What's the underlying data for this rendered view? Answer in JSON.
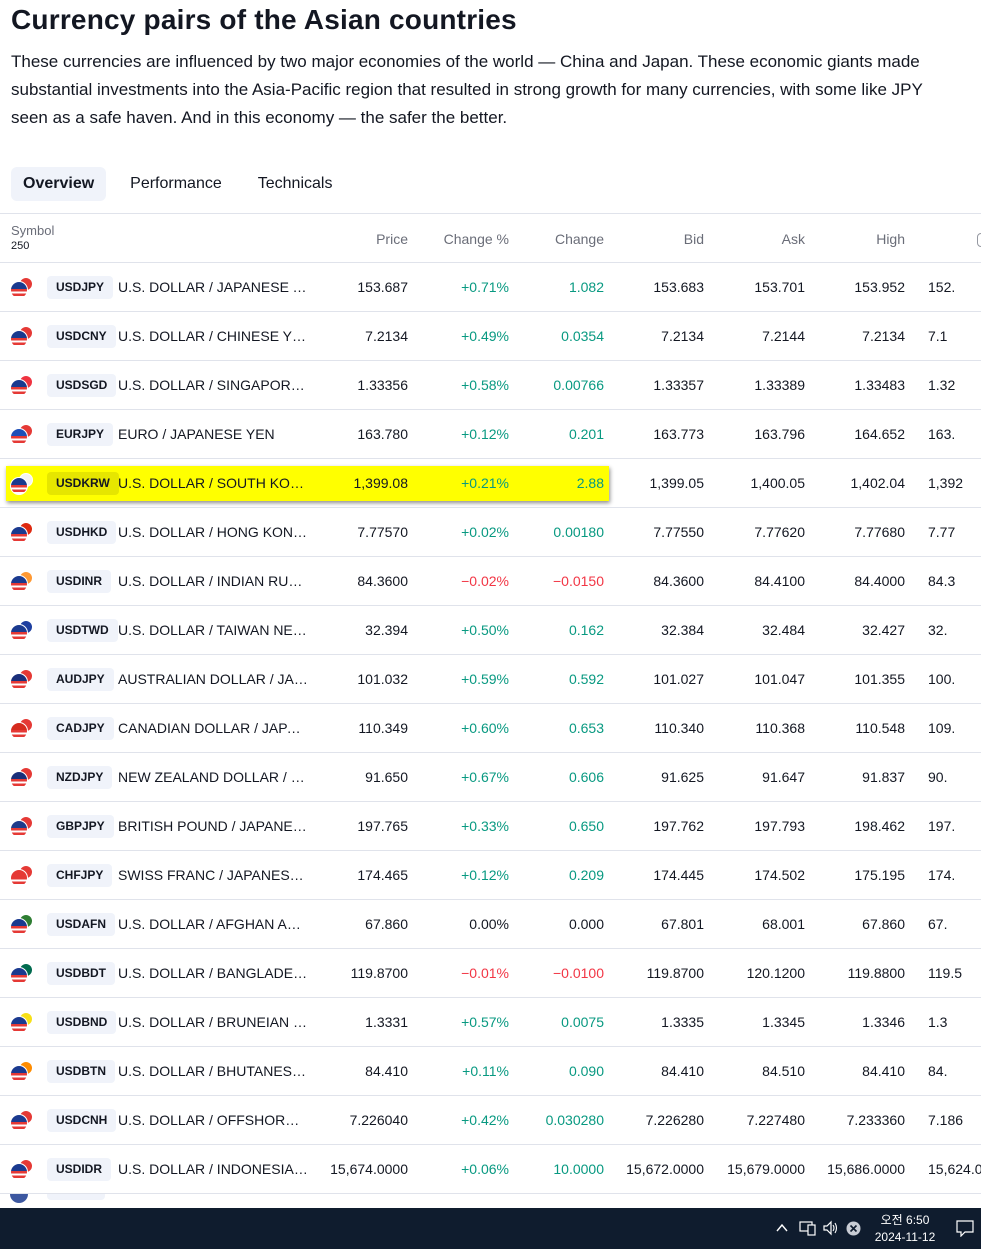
{
  "title": "Currency pairs of the Asian countries",
  "description": "These currencies are influenced by two major economies of the world — China and Japan. These economic giants made substantial investments into the Asia-Pacific region that resulted in strong growth for many currencies, with some like JPY seen as a safe haven. And in this economy — the safer the better.",
  "tabs": [
    "Overview",
    "Performance",
    "Technicals"
  ],
  "columns": {
    "symbol": "Symbol",
    "count": "250",
    "price": "Price",
    "change_pct": "Change %",
    "change": "Change",
    "bid": "Bid",
    "ask": "Ask",
    "high": "High"
  },
  "rows": [
    {
      "ticker": "USDJPY",
      "name": "U.S. DOLLAR / JAPANESE YEN",
      "price": "153.687",
      "chp": "+0.71%",
      "ch": "1.082",
      "bid": "153.683",
      "ask": "153.701",
      "high": "153.952",
      "low": "152.",
      "dir": "pos",
      "flag": [
        "#1a3a8f",
        "#e53935"
      ]
    },
    {
      "ticker": "USDCNY",
      "name": "U.S. DOLLAR / CHINESE YUAN",
      "price": "7.2134",
      "chp": "+0.49%",
      "ch": "0.0354",
      "bid": "7.2134",
      "ask": "7.2144",
      "high": "7.2134",
      "low": "7.1",
      "dir": "pos",
      "flag": [
        "#1a3a8f",
        "#e53935"
      ]
    },
    {
      "ticker": "USDSGD",
      "name": "U.S. DOLLAR / SINGAPORE DOLLAR",
      "price": "1.33356",
      "chp": "+0.58%",
      "ch": "0.00766",
      "bid": "1.33357",
      "ask": "1.33389",
      "high": "1.33483",
      "low": "1.32",
      "dir": "pos",
      "flag": [
        "#1a3a8f",
        "#ef3340"
      ]
    },
    {
      "ticker": "EURJPY",
      "name": "EURO / JAPANESE YEN",
      "price": "163.780",
      "chp": "+0.12%",
      "ch": "0.201",
      "bid": "163.773",
      "ask": "163.796",
      "high": "164.652",
      "low": "163.",
      "dir": "pos",
      "flag": [
        "#1e4fb8",
        "#e53935"
      ]
    },
    {
      "ticker": "USDKRW",
      "name": "U.S. DOLLAR / SOUTH KOREAN WON",
      "price": "1,399.08",
      "chp": "+0.21%",
      "ch": "2.88",
      "bid": "1,399.05",
      "ask": "1,400.05",
      "high": "1,402.04",
      "low": "1,392",
      "dir": "pos",
      "flag": [
        "#1a3a8f",
        "#f4f4f4"
      ],
      "highlight": true
    },
    {
      "ticker": "USDHKD",
      "name": "U.S. DOLLAR / HONG KONG DOLLAR",
      "price": "7.77570",
      "chp": "+0.02%",
      "ch": "0.00180",
      "bid": "7.77550",
      "ask": "7.77620",
      "high": "7.77680",
      "low": "7.77",
      "dir": "pos",
      "flag": [
        "#1a3a8f",
        "#de2910"
      ]
    },
    {
      "ticker": "USDINR",
      "name": "U.S. DOLLAR / INDIAN RUPEE",
      "price": "84.3600",
      "chp": "−0.02%",
      "ch": "−0.0150",
      "bid": "84.3600",
      "ask": "84.4100",
      "high": "84.4000",
      "low": "84.3",
      "dir": "neg",
      "flag": [
        "#1a3a8f",
        "#ff9933"
      ]
    },
    {
      "ticker": "USDTWD",
      "name": "U.S. DOLLAR / TAIWAN NEW DOLLAR",
      "price": "32.394",
      "chp": "+0.50%",
      "ch": "0.162",
      "bid": "32.384",
      "ask": "32.484",
      "high": "32.427",
      "low": "32.",
      "dir": "pos",
      "flag": [
        "#1a3a8f",
        "#1e3fa0"
      ]
    },
    {
      "ticker": "AUDJPY",
      "name": "AUSTRALIAN DOLLAR / JAPANESE YEN",
      "price": "101.032",
      "chp": "+0.59%",
      "ch": "0.592",
      "bid": "101.027",
      "ask": "101.047",
      "high": "101.355",
      "low": "100.",
      "dir": "pos",
      "flag": [
        "#1a2f7a",
        "#e53935"
      ]
    },
    {
      "ticker": "CADJPY",
      "name": "CANADIAN DOLLAR / JAPANESE YEN",
      "price": "110.349",
      "chp": "+0.60%",
      "ch": "0.653",
      "bid": "110.340",
      "ask": "110.368",
      "high": "110.548",
      "low": "109.",
      "dir": "pos",
      "flag": [
        "#d52b1e",
        "#e53935"
      ]
    },
    {
      "ticker": "NZDJPY",
      "name": "NEW ZEALAND DOLLAR / JAPANESE YEN",
      "price": "91.650",
      "chp": "+0.67%",
      "ch": "0.606",
      "bid": "91.625",
      "ask": "91.647",
      "high": "91.837",
      "low": "90.",
      "dir": "pos",
      "flag": [
        "#1a2f7a",
        "#e53935"
      ]
    },
    {
      "ticker": "GBPJPY",
      "name": "BRITISH POUND / JAPANESE YEN",
      "price": "197.765",
      "chp": "+0.33%",
      "ch": "0.650",
      "bid": "197.762",
      "ask": "197.793",
      "high": "198.462",
      "low": "197.",
      "dir": "pos",
      "flag": [
        "#1f3b8a",
        "#e53935"
      ]
    },
    {
      "ticker": "CHFJPY",
      "name": "SWISS FRANC / JAPANESE YEN",
      "price": "174.465",
      "chp": "+0.12%",
      "ch": "0.209",
      "bid": "174.445",
      "ask": "174.502",
      "high": "175.195",
      "low": "174.",
      "dir": "pos",
      "flag": [
        "#e53935",
        "#e53935"
      ]
    },
    {
      "ticker": "USDAFN",
      "name": "U.S. DOLLAR / AFGHAN AFGHANI",
      "price": "67.860",
      "chp": "0.00%",
      "ch": "0.000",
      "bid": "67.801",
      "ask": "68.001",
      "high": "67.860",
      "low": "67.",
      "dir": "neu",
      "flag": [
        "#1a3a8f",
        "#2e7d32"
      ]
    },
    {
      "ticker": "USDBDT",
      "name": "U.S. DOLLAR / BANGLADESHI TAKA",
      "price": "119.8700",
      "chp": "−0.01%",
      "ch": "−0.0100",
      "bid": "119.8700",
      "ask": "120.1200",
      "high": "119.8800",
      "low": "119.5",
      "dir": "neg",
      "flag": [
        "#1a3a8f",
        "#006a4e"
      ]
    },
    {
      "ticker": "USDBND",
      "name": "U.S. DOLLAR / BRUNEIAN DOLLAR",
      "price": "1.3331",
      "chp": "+0.57%",
      "ch": "0.0075",
      "bid": "1.3335",
      "ask": "1.3345",
      "high": "1.3346",
      "low": "1.3",
      "dir": "pos",
      "flag": [
        "#1a3a8f",
        "#f7e017"
      ]
    },
    {
      "ticker": "USDBTN",
      "name": "U.S. DOLLAR / BHUTANESE NGULTRUM",
      "price": "84.410",
      "chp": "+0.11%",
      "ch": "0.090",
      "bid": "84.410",
      "ask": "84.510",
      "high": "84.410",
      "low": "84.",
      "dir": "pos",
      "flag": [
        "#1a3a8f",
        "#ff8c00"
      ]
    },
    {
      "ticker": "USDCNH",
      "name": "U.S. DOLLAR / OFFSHORE CHINESE YUAN",
      "price": "7.226040",
      "chp": "+0.42%",
      "ch": "0.030280",
      "bid": "7.226280",
      "ask": "7.227480",
      "high": "7.233360",
      "low": "7.186",
      "dir": "pos",
      "flag": [
        "#1a3a8f",
        "#e53935"
      ]
    },
    {
      "ticker": "USDIDR",
      "name": "U.S. DOLLAR / INDONESIAN RUPIAH",
      "price": "15,674.0000",
      "chp": "+0.06%",
      "ch": "10.0000",
      "bid": "15,672.0000",
      "ask": "15,679.0000",
      "high": "15,686.0000",
      "low": "15,624.0",
      "dir": "pos",
      "flag": [
        "#1a3a8f",
        "#e53935"
      ]
    }
  ],
  "taskbar": {
    "time": "오전 6:50",
    "date": "2024-11-12",
    "icons": [
      "chevron-up-icon",
      "network-icon",
      "volume-icon",
      "close-circle-icon",
      "notification-icon"
    ]
  }
}
